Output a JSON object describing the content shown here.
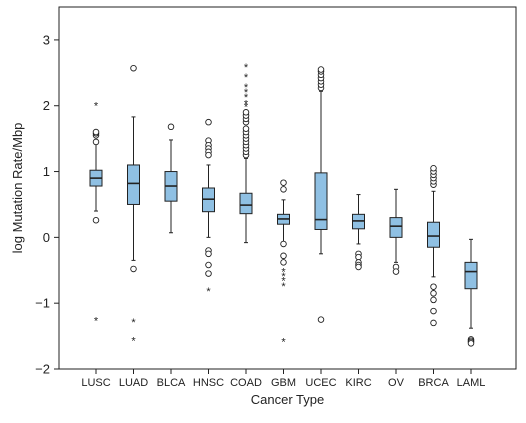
{
  "chart_data": {
    "type": "box",
    "xlabel": "Cancer Type",
    "ylabel": "log Mutation Rate/Mbp",
    "ylim": [
      -2,
      3.5
    ],
    "yticks": [
      -2,
      -1,
      0,
      1,
      2,
      3
    ],
    "ytick_labels": [
      "−2",
      "−1",
      "0",
      "1",
      "2",
      "3"
    ],
    "grid": false,
    "box_color": "#8fc0e3",
    "categories": [
      "LUSC",
      "LUAD",
      "BLCA",
      "HNSC",
      "COAD",
      "GBM",
      "UCEC",
      "KIRC",
      "OV",
      "BRCA",
      "LAML"
    ],
    "boxes": [
      {
        "category": "LUSC",
        "whisker_low": 0.4,
        "q1": 0.78,
        "median": 0.9,
        "q3": 1.02,
        "whisker_high": 1.42,
        "outliers_circle": [
          0.26,
          1.45,
          1.55,
          1.58,
          1.6
        ],
        "outliers_star": [
          2.02,
          -1.25
        ]
      },
      {
        "category": "LUAD",
        "whisker_low": -0.35,
        "q1": 0.5,
        "median": 0.82,
        "q3": 1.1,
        "whisker_high": 1.83,
        "outliers_circle": [
          2.57,
          -0.48
        ],
        "outliers_star": [
          -1.27,
          -1.55
        ]
      },
      {
        "category": "BLCA",
        "whisker_low": 0.07,
        "q1": 0.55,
        "median": 0.78,
        "q3": 1.0,
        "whisker_high": 1.48,
        "outliers_circle": [
          1.68
        ],
        "outliers_star": []
      },
      {
        "category": "HNSC",
        "whisker_low": 0.0,
        "q1": 0.39,
        "median": 0.58,
        "q3": 0.75,
        "whisker_high": 1.1,
        "outliers_circle": [
          1.75,
          1.47,
          1.4,
          1.35,
          1.3,
          1.25,
          -0.2,
          -0.25,
          -0.42,
          -0.55
        ],
        "outliers_star": [
          -0.8
        ]
      },
      {
        "category": "COAD",
        "whisker_low": -0.08,
        "q1": 0.36,
        "median": 0.49,
        "q3": 0.67,
        "whisker_high": 1.2,
        "outliers_circle": [
          1.25,
          1.3,
          1.35,
          1.4,
          1.45,
          1.5,
          1.55,
          1.6,
          1.65,
          1.75,
          1.8,
          1.85,
          1.9
        ],
        "outliers_star": [
          2.0,
          2.05,
          2.15,
          2.22,
          2.3,
          2.45,
          2.6
        ]
      },
      {
        "category": "GBM",
        "whisker_low": -0.07,
        "q1": 0.2,
        "median": 0.28,
        "q3": 0.35,
        "whisker_high": 0.57,
        "outliers_circle": [
          0.83,
          0.73,
          -0.1,
          -0.28,
          -0.38
        ],
        "outliers_star": [
          -0.5,
          -0.57,
          -0.64,
          -0.72,
          -1.57
        ]
      },
      {
        "category": "UCEC",
        "whisker_low": -0.25,
        "q1": 0.12,
        "median": 0.27,
        "q3": 0.98,
        "whisker_high": 2.22,
        "outliers_circle": [
          2.27,
          2.32,
          2.37,
          2.42,
          2.47,
          2.52,
          2.55,
          -1.25
        ],
        "outliers_star": []
      },
      {
        "category": "KIRC",
        "whisker_low": -0.1,
        "q1": 0.13,
        "median": 0.25,
        "q3": 0.35,
        "whisker_high": 0.65,
        "outliers_circle": [
          -0.25,
          -0.3,
          -0.38,
          -0.42,
          -0.45
        ],
        "outliers_star": []
      },
      {
        "category": "OV",
        "whisker_low": -0.38,
        "q1": 0.0,
        "median": 0.17,
        "q3": 0.3,
        "whisker_high": 0.73,
        "outliers_circle": [
          -0.45,
          -0.52
        ],
        "outliers_star": []
      },
      {
        "category": "BRCA",
        "whisker_low": -0.6,
        "q1": -0.15,
        "median": 0.02,
        "q3": 0.23,
        "whisker_high": 0.7,
        "outliers_circle": [
          0.8,
          0.85,
          0.9,
          0.95,
          1.0,
          1.05,
          -0.75,
          -0.85,
          -0.95,
          -1.12,
          -1.3
        ],
        "outliers_star": []
      },
      {
        "category": "LAML",
        "whisker_low": -1.38,
        "q1": -0.78,
        "median": -0.52,
        "q3": -0.38,
        "whisker_high": -0.03,
        "outliers_circle": [
          -1.55,
          -1.57,
          -1.59,
          -1.61
        ],
        "outliers_star": []
      }
    ]
  }
}
